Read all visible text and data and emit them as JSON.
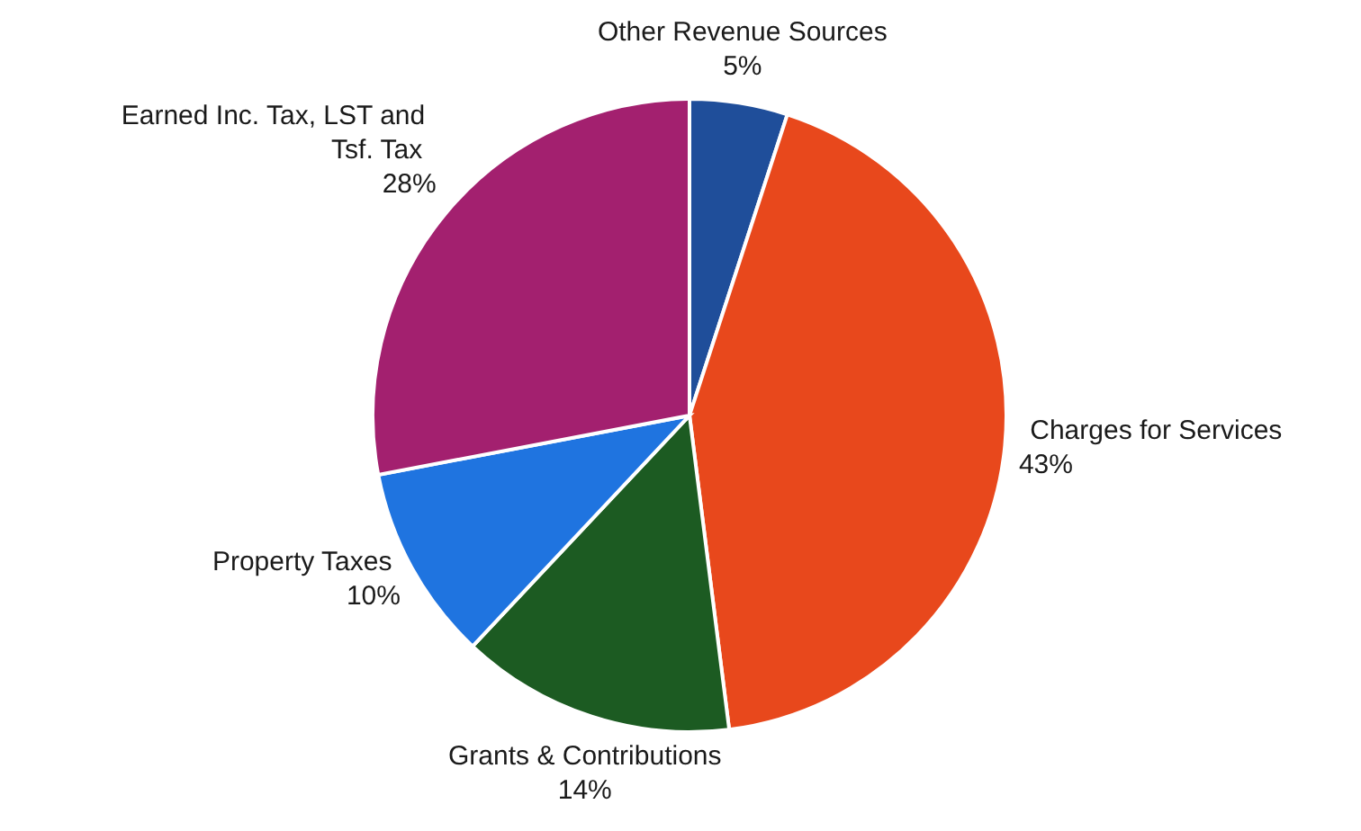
{
  "chart_data": {
    "type": "pie",
    "categories": [
      "Other Revenue Sources",
      "Charges for Services",
      "Grants & Contributions",
      "Property Taxes",
      "Earned Inc. Tax, LST and Tsf. Tax"
    ],
    "values": [
      5,
      43,
      14,
      10,
      28
    ],
    "value_labels": [
      "5%",
      "43%",
      "14%",
      "10%",
      "28%"
    ],
    "colors": [
      "#1f4e9a",
      "#e8481c",
      "#1c5b22",
      "#1f74e0",
      "#a3206f"
    ]
  }
}
